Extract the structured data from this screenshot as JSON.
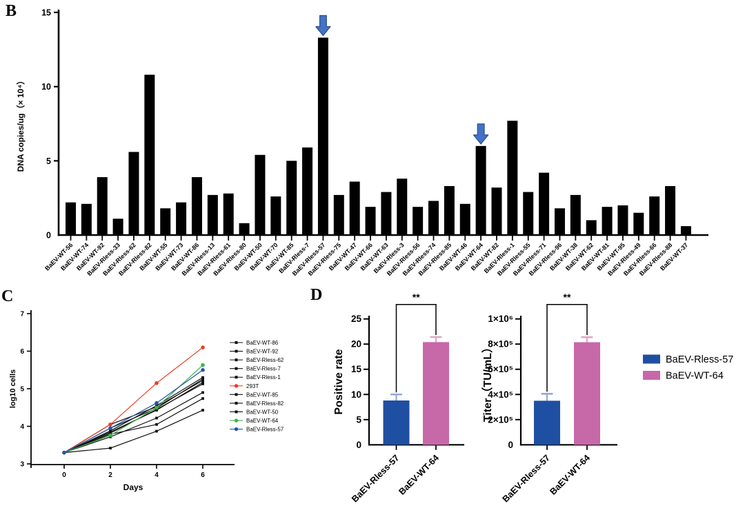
{
  "panels": {
    "b": "B",
    "c": "C",
    "d": "D"
  },
  "colors": {
    "bar_black": "#000000",
    "axis_black": "#000000",
    "arrow_blue": "#4472C4",
    "arrow_border": "#2F5597",
    "blue": "#1F4FA2",
    "pink": "#C768A8",
    "error_blue": "#93A8DC",
    "error_pink": "#E2A3CB",
    "red": "#EF3B24",
    "green": "#3CB44A",
    "line_black": "#111111",
    "line_blue": "#2456AC"
  },
  "chart_data": [
    {
      "id": "dna_copies",
      "panel": "B",
      "type": "bar",
      "ylabel": "DNA copies/ug（× 10⁴）",
      "ylim": [
        0,
        15
      ],
      "yticks": [
        0,
        5,
        10,
        15
      ],
      "grid": false,
      "bar_color": "#000000",
      "arrow_categories": [
        "BaEV-Rless-57",
        "BaEV-WT-64"
      ],
      "categories": [
        "BaEV-WT-56",
        "BaEV-WT-74",
        "BaEV-WT-92",
        "BaEV-Rless-33",
        "BaEV-Rless-62",
        "BaEV-Rless-82",
        "BaEV-WT-55",
        "BaEV-WT-73",
        "BaEV-WT-86",
        "BaEV-Rless-13",
        "BaEV-Rless-61",
        "BaEV-Rless-80",
        "BaEV-WT-50",
        "BaEV-WT-70",
        "BaEV-WT-85",
        "BaEV-Rless-7",
        "BaEV-Rless-57",
        "BaEV-Rless-75",
        "BaEV-WT-47",
        "BaEV-WT-66",
        "BaEV-WT-63",
        "BaEV-Rless-3",
        "BaEV-Rless-56",
        "BaEV-Rless-74",
        "BaEV-Rless-85",
        "BaEV-WT-46",
        "BaEV-WT-64",
        "BaEV-WT-82",
        "BaEV-Rless-1",
        "BaEV-Rless-55",
        "BaEV-Rless-71",
        "BaEV-Rless-96",
        "BaEV-WT-38",
        "BaEV-WT-62",
        "BaEV-WT-81",
        "BaEV-WT-95",
        "BaEV-Rless-49",
        "BaEV-Rless-66",
        "BaEV-Rless-88",
        "BaEV-WT-37"
      ],
      "values": [
        2.2,
        2.1,
        3.9,
        1.1,
        5.6,
        10.8,
        1.8,
        2.2,
        3.9,
        2.7,
        2.8,
        0.8,
        5.4,
        2.6,
        5.0,
        5.9,
        13.3,
        2.7,
        3.6,
        1.9,
        2.9,
        3.8,
        1.9,
        2.3,
        3.3,
        2.1,
        6.0,
        3.2,
        7.7,
        2.9,
        4.2,
        1.8,
        2.7,
        1.0,
        1.9,
        2.0,
        1.5,
        2.6,
        3.3,
        0.6
      ]
    },
    {
      "id": "growth",
      "panel": "C",
      "type": "line",
      "xlabel": "Days",
      "ylabel": "log10 cells",
      "x": [
        0,
        2,
        4,
        6
      ],
      "xticks": [
        0,
        2,
        4,
        6
      ],
      "ylim": [
        3,
        7
      ],
      "yticks": [
        3,
        4,
        5,
        6,
        7
      ],
      "grid": false,
      "legend_position": "right",
      "series": [
        {
          "name": "BaEV-WT-86",
          "color": "#111111",
          "values": [
            3.3,
            3.42,
            3.87,
            4.43
          ]
        },
        {
          "name": "BaEV-WT-92",
          "color": "#111111",
          "values": [
            3.3,
            3.79,
            4.05,
            4.74
          ]
        },
        {
          "name": "BaEV-Rless-62",
          "color": "#111111",
          "values": [
            3.3,
            3.72,
            4.22,
            4.9
          ]
        },
        {
          "name": "BaEV-Rless-7",
          "color": "#111111",
          "values": [
            3.3,
            3.82,
            4.45,
            5.13
          ]
        },
        {
          "name": "BaEV-Rless-1",
          "color": "#111111",
          "values": [
            3.3,
            3.85,
            4.43,
            5.17
          ]
        },
        {
          "name": "293T",
          "color": "#EF3B24",
          "values": [
            3.3,
            4.05,
            5.15,
            6.1
          ]
        },
        {
          "name": "BaEV-WT-85",
          "color": "#111111",
          "values": [
            3.3,
            4.05,
            4.52,
            5.22
          ]
        },
        {
          "name": "BaEV-Rless-82",
          "color": "#111111",
          "values": [
            3.3,
            3.88,
            4.55,
            5.3
          ]
        },
        {
          "name": "BaEV-WT-50",
          "color": "#111111",
          "values": [
            3.3,
            3.95,
            4.48,
            5.26
          ]
        },
        {
          "name": "BaEV-WT-64",
          "color": "#3CB44A",
          "values": [
            3.3,
            3.76,
            4.5,
            5.63
          ]
        },
        {
          "name": "BaEV-Rless-57",
          "color": "#2456AC",
          "values": [
            3.3,
            3.95,
            4.62,
            5.5
          ]
        }
      ]
    },
    {
      "id": "positive_rate",
      "panel": "D",
      "type": "bar",
      "ylabel": "Positive rate",
      "ylim": [
        0,
        25
      ],
      "yticks": [
        0,
        5,
        10,
        15,
        20,
        25
      ],
      "categories": [
        "BaEV-Rless-57",
        "BaEV-WT-64"
      ],
      "values": [
        8.8,
        20.4
      ],
      "error_tops": [
        10.0,
        21.4
      ],
      "significance": "**",
      "bar_colors": [
        "#1F4FA2",
        "#C768A8"
      ],
      "error_colors": [
        "#93A8DC",
        "#E2A3CB"
      ]
    },
    {
      "id": "titer",
      "panel": "D",
      "type": "bar",
      "ylabel": "Titer（TU/mL）",
      "ylim": [
        0,
        1000000
      ],
      "ytick_values": [
        0,
        200000,
        400000,
        600000,
        800000,
        1000000
      ],
      "ytick_labels": [
        "0",
        "2×10⁵",
        "4×10⁵",
        "6×10⁵",
        "8×10⁵",
        "1×10⁶"
      ],
      "categories": [
        "BaEV-Rless-57",
        "BaEV-WT-64"
      ],
      "values": [
        350000,
        815000
      ],
      "error_tops": [
        405000,
        855000
      ],
      "significance": "**",
      "bar_colors": [
        "#1F4FA2",
        "#C768A8"
      ],
      "error_colors": [
        "#93A8DC",
        "#E2A3CB"
      ]
    }
  ],
  "legend_d": [
    {
      "label": "BaEV-Rless-57",
      "color": "#1F4FA2"
    },
    {
      "label": "BaEV-WT-64",
      "color": "#C768A8"
    }
  ]
}
